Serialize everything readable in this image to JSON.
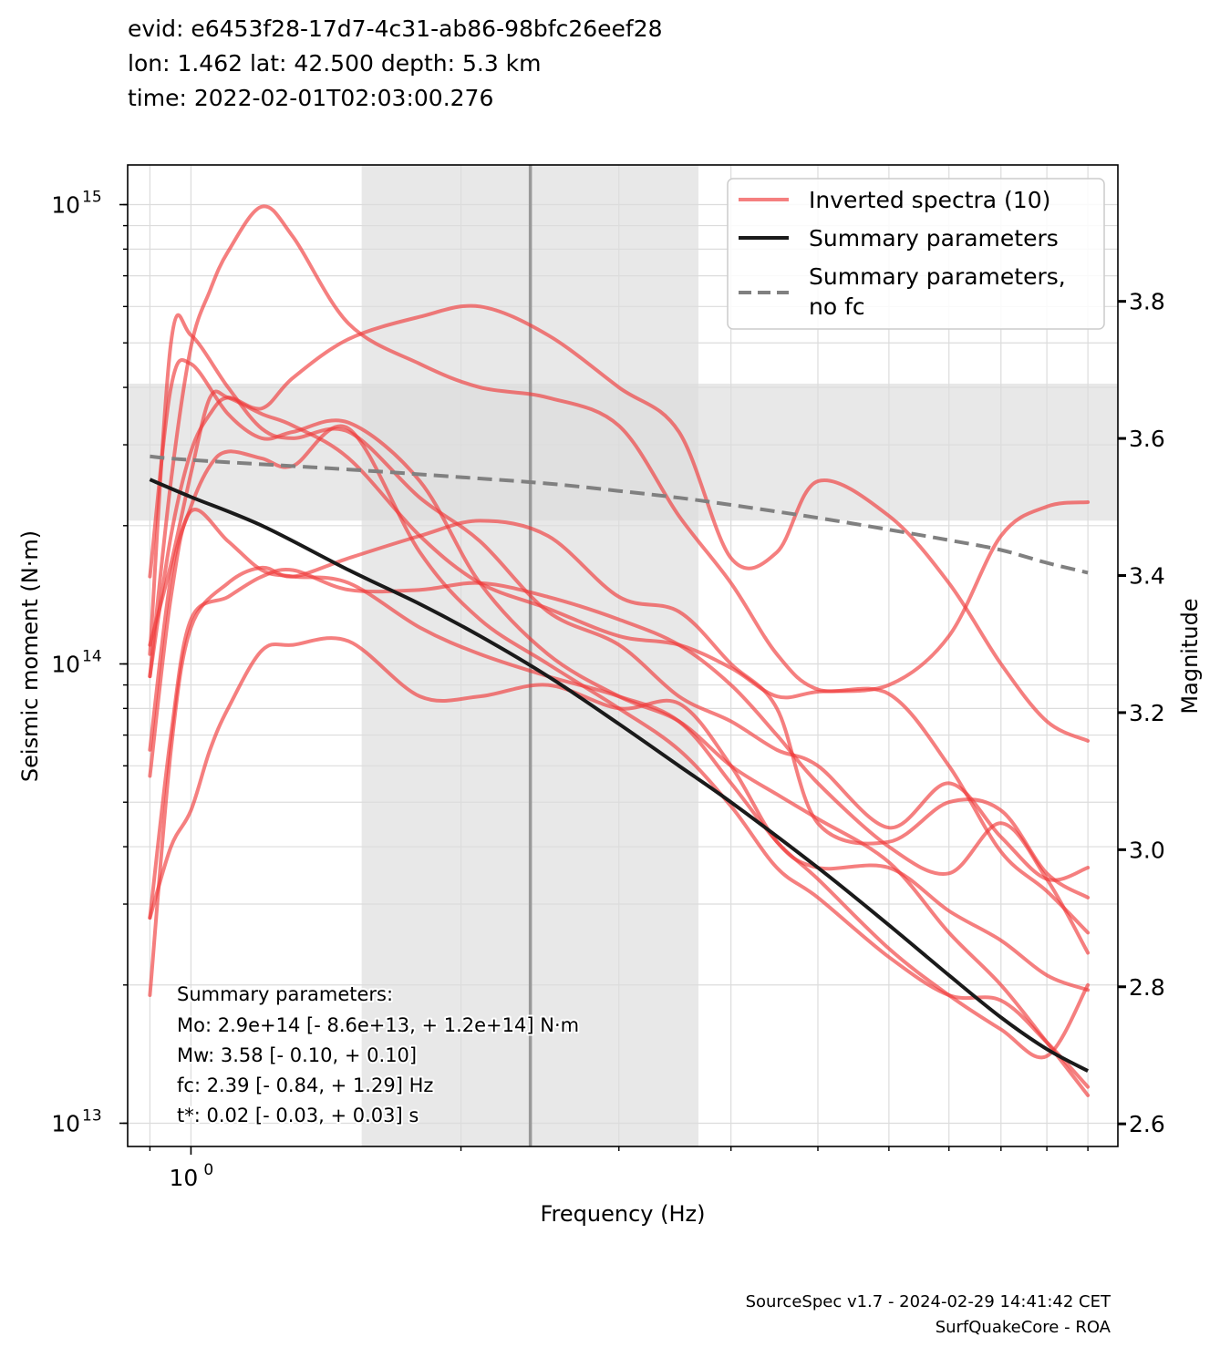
{
  "header": {
    "line1": "evid: e6453f28-17d7-4c31-ab86-98bfc26eef28",
    "line2": "lon: 1.462 lat: 42.500 depth: 5.3 km",
    "line3": "time: 2022-02-01T02:03:00.276"
  },
  "footer": {
    "line1": "SourceSpec v1.7 - 2024-02-29 14:41:42 CET",
    "line2": "SurfQuakeCore - ROA"
  },
  "summary_box": {
    "title": "Summary parameters:",
    "mo": "Mo: 2.9e+14 [- 8.6e+13, + 1.2e+14] N·m",
    "mw": "Mw: 3.58 [- 0.10, + 0.10]",
    "fc": "fc: 2.39 [- 0.84, + 1.29] Hz",
    "tstar": "t*: 0.02 [- 0.03, + 0.03] s"
  },
  "colors": {
    "inverted": "#f03a3a",
    "summary": "#1a1a1a",
    "summary_no_fc": "#808080",
    "band": "#e8e8e8",
    "fc_line": "#999999",
    "grid": "#dcdcdc"
  },
  "chart_data": {
    "type": "line",
    "xscale": "log",
    "yscale": "log",
    "xlabel": "Frequency (Hz)",
    "ylabel": "Seismic moment (N·m)",
    "y2label": "Magnitude",
    "xlim": [
      0.85,
      10.8
    ],
    "ylim": [
      8900000000000.0,
      1220000000000000.0
    ],
    "y2lim": [
      2.567,
      3.999
    ],
    "xticklabels": [
      {
        "value": 1.0,
        "label": "10",
        "exp": "0"
      }
    ],
    "yticklabels": [
      {
        "value": 10000000000000.0,
        "label": "10",
        "exp": "13"
      },
      {
        "value": 100000000000000.0,
        "label": "10",
        "exp": "14"
      },
      {
        "value": 1000000000000000.0,
        "label": "10",
        "exp": "15"
      }
    ],
    "y2ticks": [
      "2.6",
      "2.8",
      "3.0",
      "3.2",
      "3.4",
      "3.6",
      "3.8"
    ],
    "grid": true,
    "legend": {
      "placement": "top-right",
      "entries": [
        "Inverted spectra (10)",
        "Summary parameters",
        "Summary parameters,\nno fc"
      ]
    },
    "fc_band": [
      1.55,
      3.68
    ],
    "fc_value": 2.39,
    "mw_band": [
      3.48,
      3.68
    ],
    "summary": {
      "name": "Summary parameters",
      "x": [
        0.9,
        1.0,
        1.2,
        1.5,
        1.8,
        2.1,
        2.5,
        3.0,
        3.5,
        4.0,
        5.0,
        6.0,
        7.0,
        8.0,
        9.0,
        10.0
      ],
      "y": [
        252000000000000.0,
        231000000000000.0,
        200000000000000.0,
        160000000000000.0,
        135000000000000.0,
        115000000000000.0,
        94000000000000.0,
        74000000000000.0,
        60000000000000.0,
        50000000000000.0,
        36000000000000.0,
        27000000000000.0,
        21000000000000.0,
        17000000000000.0,
        14500000000000.0,
        13000000000000.0
      ]
    },
    "summary_no_fc": {
      "name": "Summary parameters,\nno fc",
      "x": [
        0.9,
        1.0,
        1.5,
        2.0,
        2.5,
        3.0,
        3.5,
        4.0,
        5.0,
        6.0,
        7.0,
        8.0,
        9.0,
        10.0
      ],
      "y": [
        283000000000000.0,
        278000000000000.0,
        265000000000000.0,
        255000000000000.0,
        247000000000000.0,
        238000000000000.0,
        230000000000000.0,
        222000000000000.0,
        208000000000000.0,
        196000000000000.0,
        186000000000000.0,
        177000000000000.0,
        166000000000000.0,
        158000000000000.0
      ]
    },
    "series": [
      {
        "x": [
          0.9,
          0.95,
          1.0,
          1.05,
          1.1,
          1.2,
          1.3,
          1.5,
          1.8,
          2.1,
          2.5,
          3.0,
          3.5,
          4.0,
          4.5,
          5.0,
          6.0,
          7.0,
          8.0,
          9.0,
          10.0
        ],
        "y": [
          28000000000000.0,
          40000000000000.0,
          48000000000000.0,
          65000000000000.0,
          80000000000000.0,
          107000000000000.0,
          110000000000000.0,
          112000000000000.0,
          85000000000000.0,
          85000000000000.0,
          90000000000000.0,
          80000000000000.0,
          82000000000000.0,
          60000000000000.0,
          41000000000000.0,
          36000000000000.0,
          36000000000000.0,
          29000000000000.0,
          25000000000000.0,
          21000000000000.0,
          19500000000000.0
        ]
      },
      {
        "x": [
          0.9,
          0.95,
          1.0,
          1.1,
          1.2,
          1.3,
          1.5,
          1.8,
          2.1,
          2.5,
          3.0,
          3.5,
          4.0,
          4.5,
          5.0,
          6.0,
          7.0,
          8.0,
          9.0,
          10.0
        ],
        "y": [
          19000000000000.0,
          65000000000000.0,
          120000000000000.0,
          150000000000000.0,
          162000000000000.0,
          155000000000000.0,
          170000000000000.0,
          190000000000000.0,
          205000000000000.0,
          190000000000000.0,
          140000000000000.0,
          130000000000000.0,
          100000000000000.0,
          80000000000000.0,
          45000000000000.0,
          41000000000000.0,
          50000000000000.0,
          48000000000000.0,
          35000000000000.0,
          31000000000000.0
        ]
      },
      {
        "x": [
          0.9,
          0.95,
          1.0,
          1.1,
          1.2,
          1.3,
          1.5,
          1.8,
          2.1,
          2.5,
          3.0,
          3.5,
          4.0,
          4.5,
          5.0,
          6.0,
          7.0,
          8.0,
          9.0,
          10.0
        ],
        "y": [
          57000000000000.0,
          140000000000000.0,
          215000000000000.0,
          185000000000000.0,
          160000000000000.0,
          155000000000000.0,
          150000000000000.0,
          120000000000000.0,
          105000000000000.0,
          94000000000000.0,
          85000000000000.0,
          75000000000000.0,
          55000000000000.0,
          41000000000000.0,
          34000000000000.0,
          24000000000000.0,
          19000000000000.0,
          16000000000000.0,
          14000000000000.0,
          20000000000000.0
        ]
      },
      {
        "x": [
          0.9,
          0.95,
          1.0,
          1.05,
          1.1,
          1.2,
          1.3,
          1.5,
          1.8,
          2.1,
          2.5,
          3.0,
          3.5,
          4.0,
          4.5,
          5.0,
          6.0,
          7.0,
          8.0,
          9.0,
          10.0
        ],
        "y": [
          94000000000000.0,
          250000000000000.0,
          490000000000000.0,
          650000000000000.0,
          790000000000000.0,
          990000000000000.0,
          850000000000000.0,
          550000000000000.0,
          450000000000000.0,
          400000000000000.0,
          380000000000000.0,
          330000000000000.0,
          210000000000000.0,
          150000000000000.0,
          105000000000000.0,
          88000000000000.0,
          86000000000000.0,
          60000000000000.0,
          39000000000000.0,
          32000000000000.0,
          26000000000000.0
        ]
      },
      {
        "x": [
          0.9,
          0.95,
          1.0,
          1.1,
          1.2,
          1.3,
          1.5,
          1.8,
          2.1,
          2.5,
          3.0,
          3.5,
          4.0,
          4.5,
          5.0,
          6.0,
          7.0,
          8.0,
          9.0,
          10.0
        ],
        "y": [
          155000000000000.0,
          400000000000000.0,
          450000000000000.0,
          350000000000000.0,
          310000000000000.0,
          320000000000000.0,
          335000000000000.0,
          250000000000000.0,
          150000000000000.0,
          105000000000000.0,
          85000000000000.0,
          75000000000000.0,
          60000000000000.0,
          52000000000000.0,
          46000000000000.0,
          37000000000000.0,
          26000000000000.0,
          20000000000000.0,
          15000000000000.0,
          11500000000000.0
        ]
      },
      {
        "x": [
          0.9,
          0.95,
          1.0,
          1.1,
          1.2,
          1.3,
          1.5,
          1.8,
          2.1,
          2.5,
          3.0,
          3.5,
          4.0,
          4.5,
          5.0,
          6.0,
          7.0,
          8.0,
          9.0,
          10.0
        ],
        "y": [
          105000000000000.0,
          500000000000000.0,
          520000000000000.0,
          400000000000000.0,
          325000000000000.0,
          310000000000000.0,
          320000000000000.0,
          230000000000000.0,
          185000000000000.0,
          130000000000000.0,
          110000000000000.0,
          85000000000000.0,
          75000000000000.0,
          65000000000000.0,
          60000000000000.0,
          44000000000000.0,
          55000000000000.0,
          42000000000000.0,
          34000000000000.0,
          36000000000000.0
        ]
      },
      {
        "x": [
          0.9,
          0.95,
          1.0,
          1.1,
          1.2,
          1.3,
          1.5,
          1.8,
          2.1,
          2.5,
          3.0,
          3.5,
          4.0,
          4.5,
          5.0,
          6.0,
          7.0,
          8.0,
          9.0,
          10.0
        ],
        "y": [
          28000000000000.0,
          70000000000000.0,
          125000000000000.0,
          140000000000000.0,
          155000000000000.0,
          160000000000000.0,
          145000000000000.0,
          145000000000000.0,
          150000000000000.0,
          140000000000000.0,
          125000000000000.0,
          110000000000000.0,
          90000000000000.0,
          70000000000000.0,
          55000000000000.0,
          40000000000000.0,
          35000000000000.0,
          45000000000000.0,
          34000000000000.0,
          23500000000000.0
        ]
      },
      {
        "x": [
          0.9,
          0.95,
          1.0,
          1.05,
          1.1,
          1.2,
          1.3,
          1.5,
          1.8,
          2.1,
          2.5,
          3.0,
          3.5,
          4.0,
          4.5,
          5.0,
          6.0,
          7.0,
          8.0,
          9.0,
          10.0
        ],
        "y": [
          65000000000000.0,
          155000000000000.0,
          220000000000000.0,
          270000000000000.0,
          290000000000000.0,
          280000000000000.0,
          270000000000000.0,
          325000000000000.0,
          175000000000000.0,
          125000000000000.0,
          100000000000000.0,
          80000000000000.0,
          65000000000000.0,
          49000000000000.0,
          36000000000000.0,
          31000000000000.0,
          23000000000000.0,
          19000000000000.0,
          18500000000000.0,
          15000000000000.0,
          12000000000000.0
        ]
      },
      {
        "x": [
          0.9,
          0.95,
          1.0,
          1.05,
          1.1,
          1.2,
          1.3,
          1.5,
          1.8,
          2.1,
          2.5,
          3.0,
          3.5,
          4.0,
          4.5,
          5.0,
          6.0,
          7.0,
          8.0,
          9.0,
          10.0
        ],
        "y": [
          94000000000000.0,
          190000000000000.0,
          290000000000000.0,
          350000000000000.0,
          380000000000000.0,
          360000000000000.0,
          420000000000000.0,
          510000000000000.0,
          570000000000000.0,
          600000000000000.0,
          520000000000000.0,
          400000000000000.0,
          320000000000000.0,
          170000000000000.0,
          175000000000000.0,
          250000000000000.0,
          210000000000000.0,
          150000000000000.0,
          100000000000000.0,
          75000000000000.0,
          68000000000000.0
        ]
      },
      {
        "x": [
          0.9,
          0.95,
          1.0,
          1.05,
          1.1,
          1.2,
          1.3,
          1.5,
          1.8,
          2.1,
          2.5,
          3.0,
          3.5,
          4.0,
          4.5,
          5.0,
          6.0,
          7.0,
          8.0,
          9.0,
          10.0
        ],
        "y": [
          110000000000000.0,
          165000000000000.0,
          260000000000000.0,
          380000000000000.0,
          380000000000000.0,
          350000000000000.0,
          330000000000000.0,
          280000000000000.0,
          190000000000000.0,
          150000000000000.0,
          132000000000000.0,
          115000000000000.0,
          110000000000000.0,
          98000000000000.0,
          85000000000000.0,
          87000000000000.0,
          90000000000000.0,
          115000000000000.0,
          190000000000000.0,
          220000000000000.0,
          225000000000000.0
        ]
      }
    ]
  }
}
